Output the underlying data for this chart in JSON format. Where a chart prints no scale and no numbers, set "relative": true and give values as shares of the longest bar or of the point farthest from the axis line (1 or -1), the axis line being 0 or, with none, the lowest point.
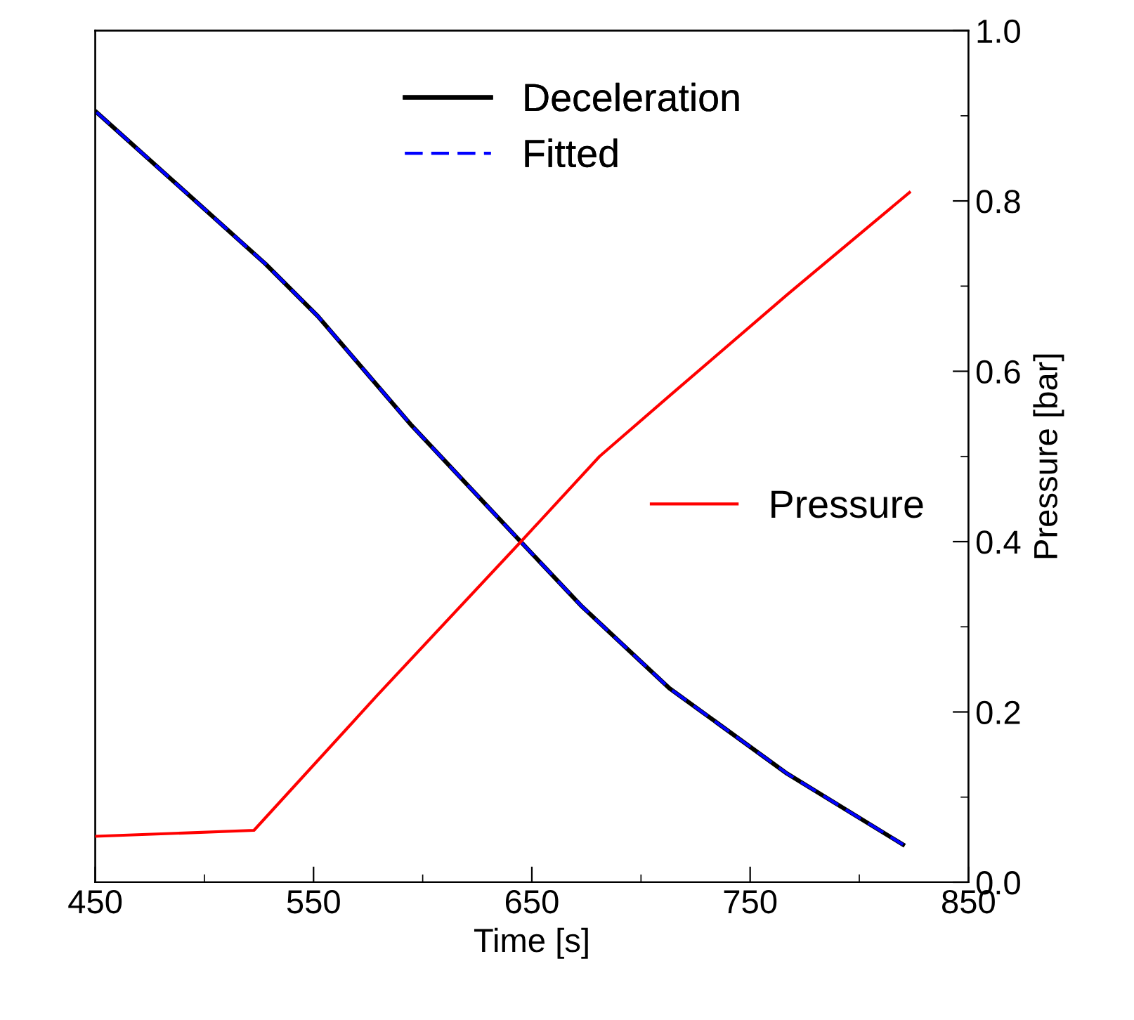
{
  "chart_data": {
    "type": "line",
    "relative": true,
    "xlabel": "Time [s]",
    "y2label": "Pressure [bar]",
    "xlim": [
      450,
      850
    ],
    "xticks": [
      450,
      550,
      650,
      750,
      850
    ],
    "y2lim": [
      0.0,
      1.0
    ],
    "y2ticks": [
      {
        "value": 0.0,
        "label": "0.0"
      },
      0.2,
      0.4,
      0.6,
      0.8,
      {
        "value": 1.0,
        "label": "1.0"
      }
    ],
    "grid": false,
    "legend": "top right",
    "marker": "none",
    "series": [
      {
        "name": "Deceleration",
        "color": "#000000",
        "line_style": "solid",
        "x": [
          450.6,
          528,
          552,
          595,
          645,
          673,
          713,
          767,
          820
        ],
        "values": [
          1.0,
          0.803,
          0.735,
          0.593,
          0.442,
          0.358,
          0.252,
          0.141,
          0.049
        ]
      },
      {
        "name": "Fitted",
        "color": "#0000ff",
        "line_style": "dashed",
        "x": [
          450.6,
          528,
          552,
          595,
          645,
          673,
          713,
          767,
          820
        ],
        "values": [
          1.0,
          0.803,
          0.735,
          0.593,
          0.442,
          0.358,
          0.252,
          0.141,
          0.049
        ]
      },
      {
        "name": "Pressure",
        "color": "#ff0000",
        "line_style": "solid",
        "axis": "y2",
        "x": [
          450,
          522.7,
          579,
          645,
          681,
          713,
          767,
          823
        ],
        "values": [
          0.054,
          0.061,
          0.219,
          0.4,
          0.5,
          0.571,
          0.69,
          0.81
        ]
      }
    ]
  }
}
